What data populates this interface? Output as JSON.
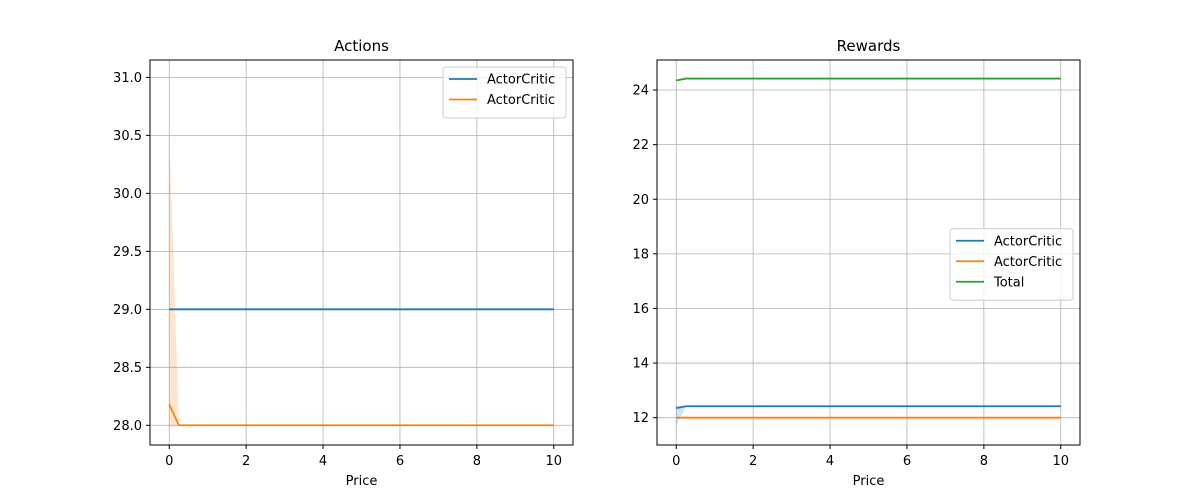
{
  "chart_data": [
    {
      "type": "line",
      "title": "Actions",
      "xlabel": "Price",
      "ylabel": "",
      "xlim": [
        -0.5,
        10.5
      ],
      "ylim": [
        27.83,
        31.15
      ],
      "xticks": [
        0,
        2,
        4,
        6,
        8,
        10
      ],
      "xtick_labels": [
        "0",
        "2",
        "4",
        "6",
        "8",
        "10"
      ],
      "yticks": [
        28.0,
        28.5,
        29.0,
        29.5,
        30.0,
        30.5,
        31.0
      ],
      "ytick_labels": [
        "28.0",
        "28.5",
        "29.0",
        "29.5",
        "30.0",
        "30.5",
        "31.0"
      ],
      "grid": true,
      "legend_position": "top-right",
      "series": [
        {
          "name": "ActorCritic",
          "color": "#1f77b4",
          "x": [
            0,
            0.25,
            10
          ],
          "y": [
            29.0,
            29.0,
            29.0
          ],
          "band_lower": null,
          "band_upper": null
        },
        {
          "name": "ActorCritic",
          "color": "#ff7f0e",
          "x": [
            0,
            0.25,
            10
          ],
          "y": [
            28.18,
            28.0,
            28.0
          ],
          "band_lower": [
            27.98,
            28.0,
            28.0
          ],
          "band_upper": [
            30.55,
            28.0,
            28.0
          ]
        }
      ]
    },
    {
      "type": "line",
      "title": "Rewards",
      "xlabel": "Price",
      "ylabel": "",
      "xlim": [
        -0.5,
        10.5
      ],
      "ylim": [
        11.0,
        25.1
      ],
      "xticks": [
        0,
        2,
        4,
        6,
        8,
        10
      ],
      "xtick_labels": [
        "0",
        "2",
        "4",
        "6",
        "8",
        "10"
      ],
      "yticks": [
        12,
        14,
        16,
        18,
        20,
        22,
        24
      ],
      "ytick_labels": [
        "12",
        "14",
        "16",
        "18",
        "20",
        "22",
        "24"
      ],
      "grid": true,
      "legend_position": "center-right",
      "series": [
        {
          "name": "ActorCritic",
          "color": "#1f77b4",
          "x": [
            0,
            0.25,
            10
          ],
          "y": [
            12.35,
            12.42,
            12.42
          ],
          "band_lower": [
            11.7,
            12.42,
            12.42
          ],
          "band_upper": [
            12.45,
            12.42,
            12.42
          ]
        },
        {
          "name": "ActorCritic",
          "color": "#ff7f0e",
          "x": [
            0,
            0.25,
            10
          ],
          "y": [
            12.0,
            12.0,
            12.0
          ],
          "band_lower": null,
          "band_upper": null
        },
        {
          "name": "Total",
          "color": "#2ca02c",
          "x": [
            0,
            0.25,
            10
          ],
          "y": [
            24.35,
            24.42,
            24.42
          ],
          "band_lower": null,
          "band_upper": null
        }
      ]
    }
  ]
}
